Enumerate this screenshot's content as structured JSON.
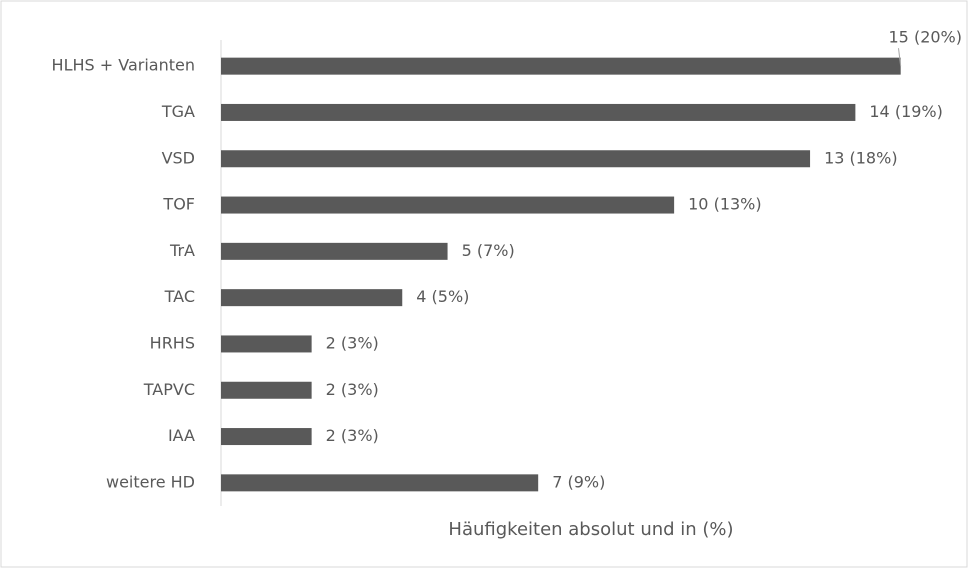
{
  "chart_data": {
    "type": "hbar",
    "x_label": "Häufigkeiten absolut und in (%)",
    "categories": [
      "HLHS + Varianten",
      "TGA",
      "VSD",
      "TOF",
      "TrA",
      "TAC",
      "HRHS",
      "TAPVC",
      "IAA",
      "weitere HD"
    ],
    "values": [
      15,
      14,
      13,
      10,
      5,
      4,
      2,
      2,
      2,
      7
    ],
    "value_labels": [
      "15 (20%)",
      "14 (19%)",
      "13 (18%)",
      "10 (13%)",
      "5 (7%)",
      "4 (5%)",
      "2 (3%)",
      "2 (3%)",
      "2 (3%)",
      "7 (9%)"
    ],
    "color": "#595959",
    "xlim": [
      0,
      16
    ]
  }
}
